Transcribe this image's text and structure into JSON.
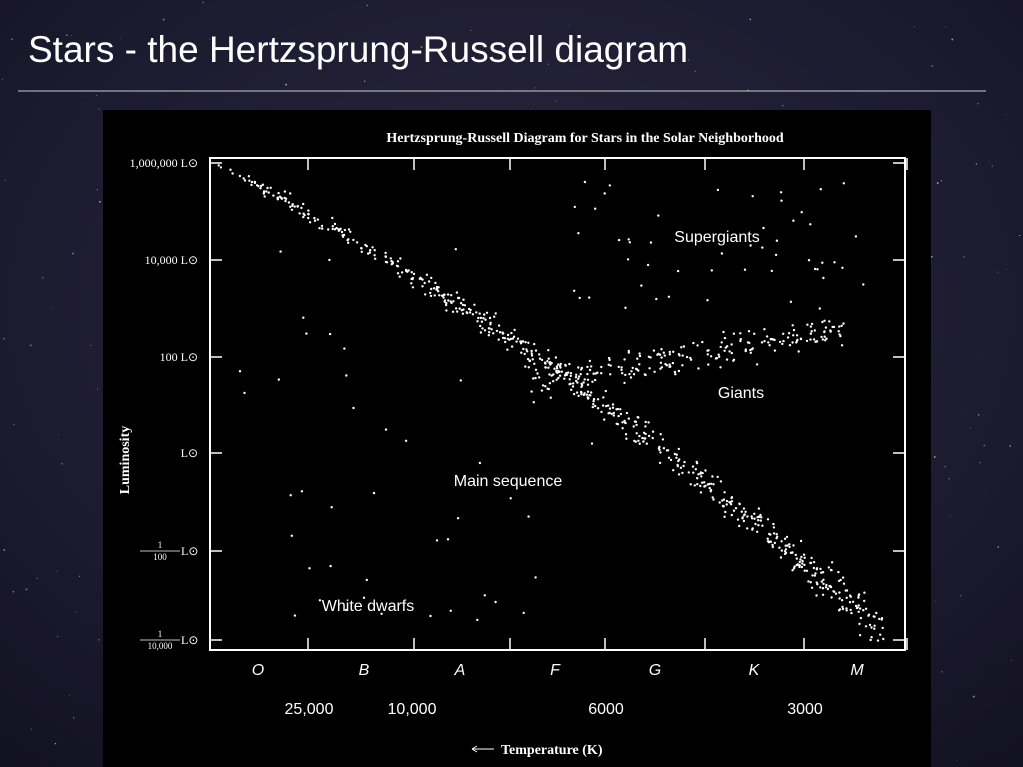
{
  "slide": {
    "title": "Stars - the Hertzsprung-Russell diagram"
  },
  "figure": {
    "title": "Hertzsprung-Russell Diagram for Stars in the Solar Neighborhood",
    "y_axis": {
      "title": "Luminosity",
      "ticks": [
        "1,000,000 L⊙",
        "10,000 L⊙",
        "100 L⊙",
        "L⊙",
        {
          "numerator": "1",
          "denominator": "100",
          "unit": "L⊙"
        },
        {
          "numerator": "1",
          "denominator": "10,000",
          "unit": "L⊙"
        }
      ]
    },
    "x_axis": {
      "classes": [
        "O",
        "B",
        "A",
        "F",
        "G",
        "K",
        "M"
      ],
      "temperatures": [
        "25,000",
        "10,000",
        "6000",
        "3000"
      ],
      "title": "Temperature (K)"
    },
    "regions": [
      "Supergiants",
      "Giants",
      "Main sequence",
      "White dwarfs"
    ]
  }
}
